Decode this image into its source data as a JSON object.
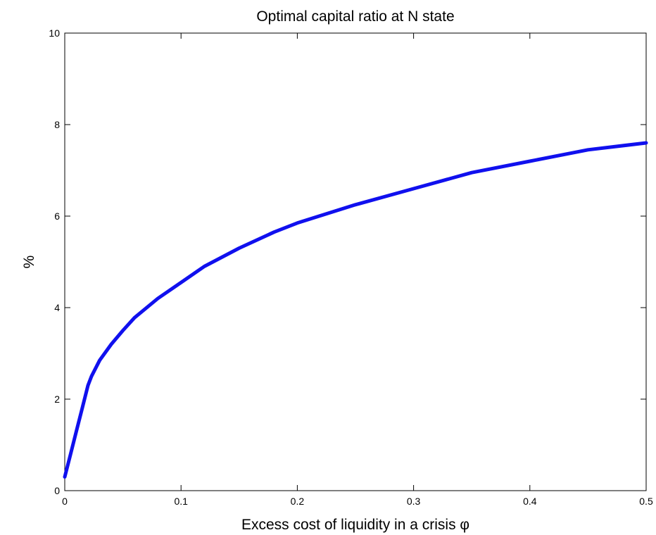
{
  "chart_data": {
    "type": "line",
    "title": "Optimal capital ratio at N state",
    "xlabel": "Excess cost of liquidity in a crisis φ",
    "ylabel": "%",
    "xlim": [
      0,
      0.5
    ],
    "ylim": [
      0,
      10
    ],
    "xticks": [
      "0",
      "0.1",
      "0.2",
      "0.3",
      "0.4",
      "0.5"
    ],
    "yticks": [
      "0",
      "2",
      "4",
      "6",
      "8",
      "10"
    ],
    "grid": false,
    "series": [
      {
        "color": "#1010ee",
        "x": [
          0,
          0.005,
          0.01,
          0.015,
          0.02,
          0.023,
          0.03,
          0.04,
          0.05,
          0.06,
          0.08,
          0.1,
          0.12,
          0.15,
          0.18,
          0.2,
          0.25,
          0.3,
          0.35,
          0.4,
          0.45,
          0.5
        ],
        "y": [
          0.3,
          0.8,
          1.3,
          1.8,
          2.3,
          2.5,
          2.85,
          3.2,
          3.5,
          3.78,
          4.2,
          4.55,
          4.9,
          5.3,
          5.65,
          5.85,
          6.25,
          6.6,
          6.95,
          7.2,
          7.45,
          7.6
        ]
      }
    ]
  }
}
